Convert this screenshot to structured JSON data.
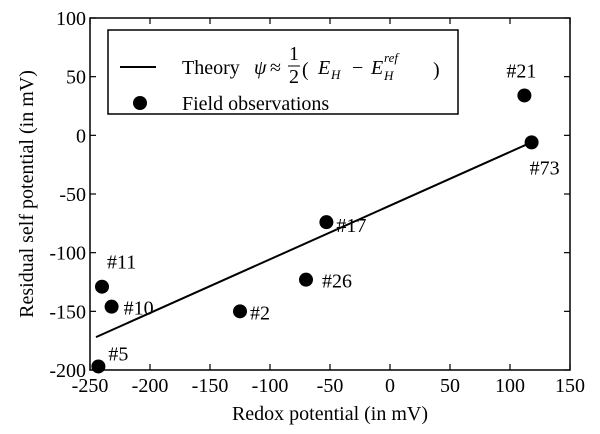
{
  "chart_data": {
    "type": "scatter",
    "xlabel": "Redox potential (in mV)",
    "ylabel": "Residual self potential (in mV)",
    "xlim": [
      -250,
      150
    ],
    "ylim": [
      -200,
      100
    ],
    "x_ticks": [
      -250,
      -200,
      -150,
      -100,
      -50,
      0,
      50,
      100,
      150
    ],
    "y_ticks": [
      -200,
      -150,
      -100,
      -50,
      0,
      50,
      100
    ],
    "x_tick_labels": [
      "-250",
      "-200",
      "-150",
      "-100",
      "-50",
      "0",
      "50",
      "100",
      "150"
    ],
    "y_tick_labels": [
      "-200",
      "-150",
      "-100",
      "-50",
      "0",
      "50",
      "100"
    ],
    "grid": false,
    "legend_position": "top",
    "legend": {
      "theory_prefix": "Theory",
      "psi": "ψ",
      "approx": "≈",
      "numerator": "1",
      "denominator": "2",
      "open_paren": "(",
      "e1": "E",
      "e1_sub": "H",
      "minus": "−",
      "e2": "E",
      "e2_sub": "H",
      "e2_sup": "ref",
      "close_paren": ")",
      "observations": "Field observations"
    },
    "series": [
      {
        "type": "line",
        "x": [
          -245,
          120
        ],
        "y": [
          -172,
          -5
        ]
      },
      {
        "type": "scatter",
        "points": [
          {
            "label": "#5",
            "x": -243,
            "y": -197
          },
          {
            "label": "#11",
            "x": -240,
            "y": -129
          },
          {
            "label": "#10",
            "x": -232,
            "y": -146
          },
          {
            "label": "#2",
            "x": -125,
            "y": -150
          },
          {
            "label": "#26",
            "x": -70,
            "y": -123
          },
          {
            "label": "#17",
            "x": -53,
            "y": -74
          },
          {
            "label": "#21",
            "x": 112,
            "y": 34
          },
          {
            "label": "#73",
            "x": 118,
            "y": -6
          }
        ]
      }
    ]
  }
}
